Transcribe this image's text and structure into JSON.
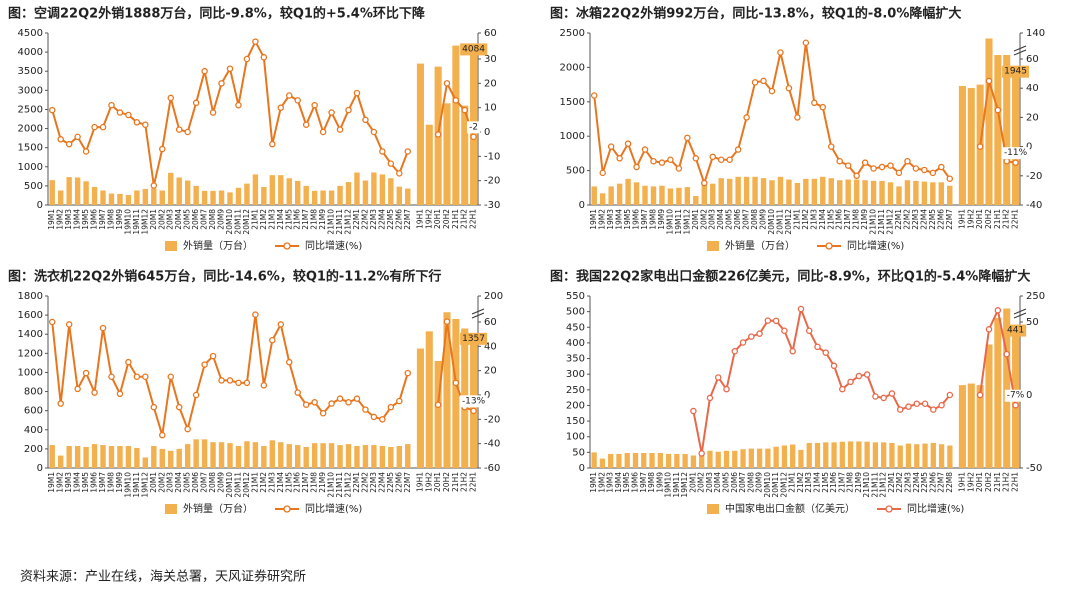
{
  "chart_data": [
    {
      "type": "combo",
      "title": "图：空调22Q2外销1888万台，同比-9.8%，较Q1的+5.4%环比下降",
      "categories": [
        "19M1",
        "19M2",
        "19M3",
        "19M4",
        "19M5",
        "19M6",
        "19M7",
        "19M8",
        "19M9",
        "19M10",
        "19M11",
        "19M12",
        "20M1",
        "20M2",
        "20M3",
        "20M4",
        "20M5",
        "20M6",
        "20M7",
        "20M8",
        "20M9",
        "20M10",
        "20M11",
        "20M12",
        "21M1",
        "21M2",
        "21M3",
        "21M4",
        "21M5",
        "21M6",
        "21M7",
        "21M8",
        "21M9",
        "21M10",
        "21M11",
        "21M12",
        "22M1",
        "22M2",
        "22M3",
        "22M4",
        "22M5",
        "22M6",
        "22M7"
      ],
      "categories2": [
        "19H1",
        "19H2",
        "20H1",
        "20H2",
        "21H1",
        "21H2",
        "22H1"
      ],
      "series": [
        {
          "name": "外销量（万台）",
          "color": "#f3b04f",
          "values": [
            650,
            380,
            730,
            720,
            620,
            470,
            380,
            300,
            290,
            260,
            380,
            420,
            430,
            380,
            840,
            720,
            640,
            500,
            370,
            370,
            380,
            330,
            450,
            560,
            800,
            470,
            780,
            780,
            700,
            630,
            500,
            370,
            380,
            380,
            500,
            600,
            850,
            640,
            850,
            800,
            700,
            480,
            430
          ],
          "values2": [
            3700,
            2100,
            3620,
            2660,
            4170,
            2600,
            4084
          ],
          "value_labels2": [
            null,
            null,
            null,
            null,
            null,
            null,
            "4084"
          ]
        },
        {
          "name": "同比增速(%)",
          "color": "#e8761f",
          "axis": "y2",
          "values": [
            9,
            -3,
            -5,
            -2,
            -8,
            2,
            2,
            11,
            8,
            7,
            4,
            3,
            -22,
            -7,
            14,
            1,
            0,
            12,
            25,
            8,
            20,
            26,
            11,
            30,
            50,
            32,
            -5,
            10,
            15,
            13,
            3,
            11,
            0,
            8,
            1,
            9,
            16,
            5,
            0,
            -8,
            -13,
            -17,
            -8
          ],
          "values2": [
            null,
            null,
            -1,
            20,
            13,
            9,
            -2
          ],
          "value_labels2": [
            null,
            null,
            null,
            null,
            null,
            null,
            "-2"
          ]
        }
      ],
      "ylim": [
        0,
        4500
      ],
      "yticks": [
        0,
        500,
        1000,
        1500,
        2000,
        2500,
        3000,
        3500,
        4000,
        4500
      ],
      "y2lim": [
        -30,
        60
      ],
      "y2ticks": [
        -30,
        -20,
        -10,
        0,
        10,
        20,
        30,
        60
      ],
      "y2break": 30
    },
    {
      "type": "combo",
      "title": "图：冰箱22Q2外销992万台，同比-13.8%，较Q1的-8.0%降幅扩大",
      "categories": [
        "19M1",
        "19M2",
        "19M3",
        "19M4",
        "19M5",
        "19M6",
        "19M7",
        "19M8",
        "19M9",
        "19M10",
        "19M11",
        "19M12",
        "20M1",
        "20M2",
        "20M3",
        "20M4",
        "20M5",
        "20M6",
        "20M7",
        "20M8",
        "20M9",
        "20M10",
        "20M11",
        "20M12",
        "21M1",
        "21M2",
        "21M3",
        "21M4",
        "21M5",
        "21M6",
        "21M7",
        "21M8",
        "21M9",
        "21M10",
        "21M11",
        "21M12",
        "22M1",
        "22M2",
        "22M3",
        "22M4",
        "22M5",
        "22M6",
        "22M7"
      ],
      "categories2": [
        "19H1",
        "19H2",
        "20H1",
        "20H2",
        "21H1",
        "21H2",
        "22H1"
      ],
      "series": [
        {
          "name": "外销量（万台）",
          "color": "#f3b04f",
          "values": [
            270,
            170,
            270,
            310,
            380,
            330,
            280,
            270,
            280,
            240,
            250,
            260,
            130,
            290,
            310,
            390,
            380,
            410,
            410,
            410,
            390,
            360,
            410,
            370,
            320,
            380,
            380,
            410,
            390,
            360,
            370,
            370,
            360,
            350,
            350,
            330,
            270,
            360,
            350,
            340,
            330,
            330,
            280
          ],
          "values2": [
            1730,
            1700,
            1750,
            2420,
            2180,
            2180,
            1945
          ],
          "value_labels2": [
            null,
            null,
            null,
            null,
            null,
            null,
            "1945"
          ]
        },
        {
          "name": "同比增速(%)",
          "color": "#e8761f",
          "axis": "y2",
          "values": [
            35,
            -18,
            0,
            -8,
            2,
            -14,
            -2,
            -10,
            -11,
            -9,
            -15,
            6,
            -8,
            -25,
            -7,
            -9,
            -9,
            -2,
            20,
            44,
            45,
            38,
            80,
            40,
            20,
            110,
            30,
            27,
            0,
            -10,
            -13,
            -20,
            -11,
            -15,
            -14,
            -13,
            -18,
            -10,
            -15,
            -16,
            -18,
            -14,
            -22
          ],
          "values2": [
            null,
            null,
            0,
            45,
            25,
            -10,
            -11
          ],
          "value_labels2": [
            null,
            null,
            null,
            null,
            null,
            null,
            "-11%"
          ]
        }
      ],
      "ylim": [
        0,
        2500
      ],
      "yticks": [
        0,
        500,
        1000,
        1500,
        2000,
        2500
      ],
      "y2lim": [
        -40,
        140
      ],
      "y2ticks": [
        -40,
        -20,
        0,
        20,
        40,
        60,
        140
      ],
      "y2break": 60
    },
    {
      "type": "combo",
      "title": "图：洗衣机22Q2外销645万台，同比-14.6%，较Q1的-11.2%有所下行",
      "categories": [
        "19M1",
        "19M2",
        "19M3",
        "19M4",
        "19M5",
        "19M6",
        "19M7",
        "19M8",
        "19M9",
        "19M10",
        "19M11",
        "19M12",
        "20M1",
        "20M2",
        "20M3",
        "20M4",
        "20M5",
        "20M6",
        "20M7",
        "20M8",
        "20M9",
        "20M10",
        "20M11",
        "20M12",
        "21M1",
        "21M2",
        "21M3",
        "21M4",
        "21M5",
        "21M6",
        "21M7",
        "21M8",
        "21M9",
        "21M10",
        "21M11",
        "21M12",
        "22M1",
        "22M2",
        "22M3",
        "22M4",
        "22M5",
        "22M6",
        "22M7"
      ],
      "categories2": [
        "19H1",
        "19H2",
        "20H1",
        "20H2",
        "21H1",
        "21H2",
        "22H1"
      ],
      "series": [
        {
          "name": "外销量（万台）",
          "color": "#f3b04f",
          "values": [
            240,
            130,
            230,
            230,
            220,
            250,
            240,
            230,
            230,
            230,
            210,
            110,
            230,
            200,
            180,
            200,
            250,
            300,
            300,
            270,
            270,
            260,
            230,
            280,
            270,
            230,
            290,
            270,
            250,
            240,
            220,
            260,
            260,
            260,
            240,
            250,
            230,
            240,
            240,
            230,
            220,
            230,
            250
          ],
          "values2": [
            1250,
            1430,
            1120,
            1630,
            1560,
            1460,
            1357
          ],
          "value_labels2": [
            null,
            null,
            null,
            null,
            null,
            null,
            "1357"
          ]
        },
        {
          "name": "同比增速(%)",
          "color": "#e8761f",
          "axis": "y2",
          "values": [
            60,
            -7,
            58,
            5,
            18,
            2,
            55,
            15,
            1,
            27,
            15,
            15,
            -10,
            -33,
            15,
            -10,
            -28,
            0,
            25,
            32,
            12,
            12,
            10,
            10,
            100,
            8,
            45,
            58,
            27,
            2,
            -8,
            -6,
            -15,
            -7,
            -3,
            -6,
            -3,
            -12,
            -18,
            -20,
            -10,
            -5,
            18
          ],
          "values2": [
            null,
            null,
            -8,
            62,
            10,
            -10,
            -13
          ],
          "value_labels2": [
            null,
            null,
            null,
            null,
            null,
            null,
            "-13%"
          ]
        }
      ],
      "ylim": [
        0,
        1800
      ],
      "yticks": [
        0,
        200,
        400,
        600,
        800,
        1000,
        1200,
        1400,
        1600,
        1800
      ],
      "y2lim": [
        -60,
        200
      ],
      "y2ticks": [
        -60,
        -40,
        -20,
        0,
        20,
        40,
        60,
        200
      ],
      "y2break": 60
    },
    {
      "type": "combo",
      "title": "图：我国22Q2家电出口金额226亿美元，同比-8.9%，环比Q1的-5.4%降幅扩大",
      "categories": [
        "19M1",
        "19M2",
        "19M3",
        "19M4",
        "19M5",
        "19M6",
        "19M7",
        "19M8",
        "19M9",
        "19M10",
        "19M11",
        "19M12",
        "20M1",
        "20M2",
        "20M3",
        "20M4",
        "20M5",
        "20M6",
        "20M7",
        "20M8",
        "20M9",
        "20M10",
        "20M11",
        "20M12",
        "21M1",
        "21M2",
        "21M3",
        "21M4",
        "21M5",
        "21M6",
        "21M7",
        "21M8",
        "21M9",
        "21M10",
        "21M11",
        "21M12",
        "22M1",
        "22M2",
        "22M3",
        "22M4",
        "22M5",
        "22M6",
        "22M7",
        "22M8"
      ],
      "categories2": [
        "19H1",
        "19H2",
        "20H1",
        "20H2",
        "21H1",
        "21H2",
        "22H1"
      ],
      "series": [
        {
          "name": "中国家电出口金额（亿美元）",
          "color": "#f3b04f",
          "values": [
            50,
            30,
            45,
            45,
            48,
            48,
            48,
            48,
            48,
            45,
            45,
            45,
            40,
            42,
            55,
            52,
            55,
            55,
            60,
            62,
            62,
            62,
            68,
            72,
            75,
            58,
            80,
            80,
            82,
            82,
            84,
            85,
            85,
            84,
            82,
            82,
            80,
            72,
            78,
            76,
            78,
            80,
            76,
            72
          ],
          "values2": [
            265,
            270,
            265,
            395,
            480,
            510,
            441
          ],
          "value_labels2": [
            null,
            null,
            null,
            null,
            null,
            null,
            "441"
          ]
        },
        {
          "name": "同比增速(%)",
          "color": "#e8694a",
          "axis": "y2",
          "values": [
            null,
            null,
            null,
            null,
            null,
            null,
            null,
            null,
            null,
            null,
            null,
            null,
            -11,
            -40,
            -2,
            12,
            4,
            30,
            36,
            40,
            42,
            61,
            59,
            44,
            30,
            150,
            44,
            33,
            29,
            20,
            4,
            9,
            13,
            14,
            -1,
            -2,
            1,
            -10,
            -8,
            -6,
            -6,
            -10,
            -7,
            0
          ],
          "values2": [
            null,
            null,
            0,
            45,
            140,
            28,
            -7
          ],
          "value_labels2": [
            null,
            null,
            null,
            null,
            null,
            null,
            "-7%"
          ]
        }
      ],
      "ylim": [
        0,
        550
      ],
      "yticks": [
        0,
        50,
        100,
        150,
        200,
        250,
        300,
        350,
        400,
        450,
        500,
        550
      ],
      "y2lim": [
        -50,
        250
      ],
      "y2ticks": [
        -50,
        0,
        50,
        250
      ],
      "y2break": 50
    }
  ],
  "source": "资料来源：产业在线，海关总署，天风证券研究所"
}
